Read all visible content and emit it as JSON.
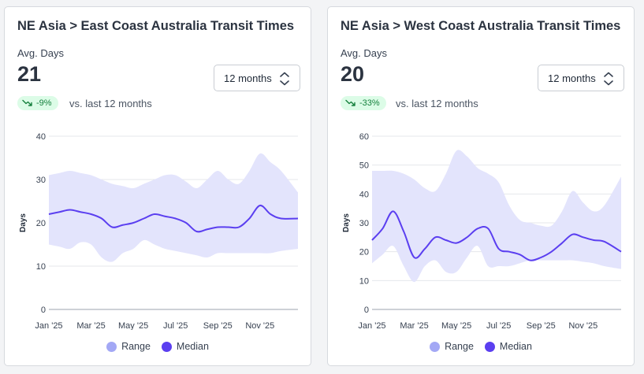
{
  "colors": {
    "range": "#e3e4fc",
    "median": "#5b3ff0",
    "legend_range": "#a3a8f5",
    "legend_median": "#5b3ff0",
    "badge_bg": "#dcfce7",
    "badge_text": "#15803d"
  },
  "cards": [
    {
      "title": "NE Asia > East Coast Australia Transit Times",
      "kpi_label": "Avg. Days",
      "kpi_value": "21",
      "period_select": "12 months",
      "change_badge": "-9%",
      "change_icon": "trend-down-icon",
      "comparison_text": "vs. last 12 months",
      "legend": [
        "Range",
        "Median"
      ],
      "chart_data": {
        "type": "area",
        "title": "",
        "xlabel": "",
        "ylabel": "Days",
        "ylim": [
          0,
          40
        ],
        "y_ticks": [
          0,
          10,
          20,
          30,
          40
        ],
        "grid": true,
        "legend_position": "bottom",
        "x_tick_labels": [
          "Jan '25",
          "Mar '25",
          "May '25",
          "Jul '25",
          "Sep '25",
          "Nov '25"
        ],
        "x_tick_index": [
          0,
          2,
          4,
          6,
          8,
          10
        ],
        "x_domain": [
          0,
          11.8
        ],
        "x": [
          0,
          0.5,
          1,
          1.5,
          2,
          2.5,
          3,
          3.5,
          4,
          4.5,
          5,
          5.5,
          6,
          6.5,
          7,
          7.5,
          8,
          8.5,
          9,
          9.5,
          10,
          10.5,
          11,
          11.8
        ],
        "series": [
          {
            "name": "Range",
            "kind": "band",
            "low": [
              15,
              14.5,
              14,
              15.5,
              15,
              12,
              11,
              13,
              14,
              16,
              15,
              14,
              13.5,
              13,
              12.5,
              12,
              13,
              13,
              13,
              13,
              13,
              13,
              13.5,
              14
            ],
            "high": [
              31,
              31.5,
              32,
              31.5,
              31,
              30,
              29,
              28.5,
              28,
              29,
              30,
              31,
              31,
              29.5,
              28,
              30,
              32,
              30,
              29,
              32,
              36,
              34,
              32,
              27
            ]
          },
          {
            "name": "Median",
            "kind": "line",
            "values": [
              22,
              22.5,
              23,
              22.5,
              22,
              21,
              19,
              19.5,
              20,
              21,
              22,
              21.5,
              21,
              20,
              18,
              18.5,
              19,
              19,
              19,
              21,
              24,
              22,
              21,
              21
            ]
          }
        ]
      }
    },
    {
      "title": "NE Asia > West Coast Australia Transit Times",
      "kpi_label": "Avg. Days",
      "kpi_value": "20",
      "period_select": "12 months",
      "change_badge": "-33%",
      "change_icon": "trend-down-icon",
      "comparison_text": "vs. last 12 months",
      "legend": [
        "Range",
        "Median"
      ],
      "chart_data": {
        "type": "area",
        "title": "",
        "xlabel": "",
        "ylabel": "Days",
        "ylim": [
          0,
          60
        ],
        "y_ticks": [
          0,
          10,
          20,
          30,
          40,
          50,
          60
        ],
        "grid": true,
        "legend_position": "bottom",
        "x_tick_labels": [
          "Jan '25",
          "Mar '25",
          "May '25",
          "Jul '25",
          "Sep '25",
          "Nov '25"
        ],
        "x_tick_index": [
          0,
          2,
          4,
          6,
          8,
          10
        ],
        "x_domain": [
          0,
          11.8
        ],
        "x": [
          0,
          0.5,
          1,
          1.5,
          2,
          2.5,
          3,
          3.5,
          4,
          4.5,
          5,
          5.5,
          6,
          6.5,
          7,
          7.5,
          8,
          8.5,
          9,
          9.5,
          10,
          10.5,
          11,
          11.8
        ],
        "series": [
          {
            "name": "Range",
            "kind": "band",
            "low": [
              16,
              19,
              22,
              15,
              9.5,
              15,
              17,
              13,
              13,
              18,
              22,
              15,
              15,
              15,
              16,
              17,
              17,
              17,
              17,
              17,
              16.5,
              16,
              15,
              14
            ],
            "high": [
              48,
              48,
              48,
              47,
              45,
              42,
              41,
              47,
              55,
              53,
              49,
              47,
              44,
              36,
              31,
              30,
              29,
              29,
              34,
              41,
              37,
              34,
              36,
              46
            ]
          },
          {
            "name": "Median",
            "kind": "line",
            "values": [
              24,
              28,
              34,
              27,
              18,
              21,
              25,
              24,
              23,
              25,
              28,
              28,
              21,
              20,
              19,
              17,
              18,
              20,
              23,
              26,
              25,
              24,
              23.5,
              20
            ]
          }
        ]
      }
    }
  ]
}
